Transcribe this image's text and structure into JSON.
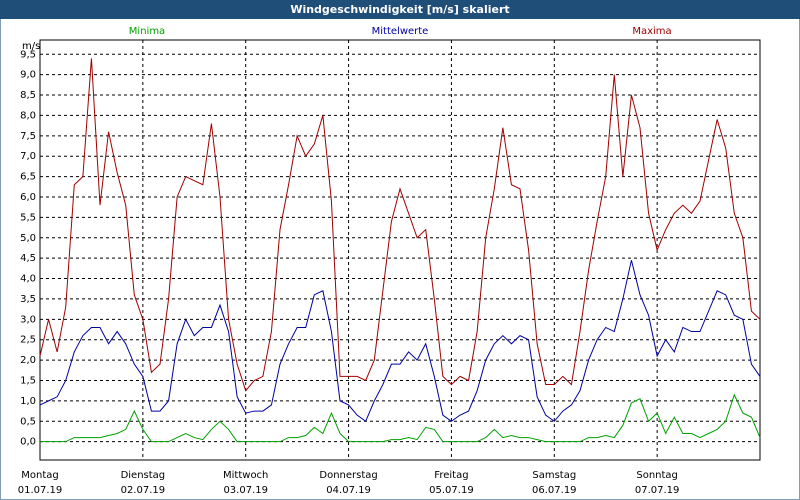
{
  "chart_data": {
    "type": "line",
    "title": "Windgeschwindigkeit [m/s] skaliert",
    "y_label": "m/s",
    "categories": [
      "Montag",
      null,
      null,
      null,
      null,
      null,
      null,
      null,
      null,
      null,
      null,
      null,
      "Dienstag",
      null,
      null,
      null,
      null,
      null,
      null,
      null,
      null,
      null,
      null,
      null,
      "Mittwoch",
      null,
      null,
      null,
      null,
      null,
      null,
      null,
      null,
      null,
      null,
      null,
      "Donnerstag",
      null,
      null,
      null,
      null,
      null,
      null,
      null,
      null,
      null,
      null,
      null,
      "Freitag",
      null,
      null,
      null,
      null,
      null,
      null,
      null,
      null,
      null,
      null,
      null,
      "Samstag",
      null,
      null,
      null,
      null,
      null,
      null,
      null,
      null,
      null,
      null,
      null,
      "Sonntag",
      null,
      null,
      null,
      null,
      null,
      null,
      null,
      null,
      null,
      null,
      null,
      null
    ],
    "dates": [
      "01.07.19",
      null,
      null,
      null,
      null,
      null,
      null,
      null,
      null,
      null,
      null,
      null,
      "02.07.19",
      null,
      null,
      null,
      null,
      null,
      null,
      null,
      null,
      null,
      null,
      null,
      "03.07.19",
      null,
      null,
      null,
      null,
      null,
      null,
      null,
      null,
      null,
      null,
      null,
      "04.07.19",
      null,
      null,
      null,
      null,
      null,
      null,
      null,
      null,
      null,
      null,
      null,
      "05.07.19",
      null,
      null,
      null,
      null,
      null,
      null,
      null,
      null,
      null,
      null,
      null,
      "06.07.19",
      null,
      null,
      null,
      null,
      null,
      null,
      null,
      null,
      null,
      null,
      null,
      "07.07.19",
      null,
      null,
      null,
      null,
      null,
      null,
      null,
      null,
      null,
      null,
      null,
      null
    ],
    "series": [
      {
        "name": "Minima",
        "color": "#00a000",
        "values": [
          0,
          0,
          0,
          0,
          0.1,
          0.1,
          0.1,
          0.1,
          0.15,
          0.2,
          0.3,
          0.75,
          0.3,
          0,
          0,
          0,
          0.1,
          0.2,
          0.1,
          0.05,
          0.3,
          0.5,
          0.3,
          0,
          0,
          0,
          0,
          0,
          0,
          0.1,
          0.1,
          0.15,
          0.35,
          0.2,
          0.7,
          0.2,
          0,
          0,
          0,
          0,
          0,
          0.05,
          0.05,
          0.1,
          0.05,
          0.35,
          0.3,
          0,
          0,
          0,
          0,
          0,
          0.1,
          0.3,
          0.1,
          0.15,
          0.1,
          0.1,
          0.05,
          0,
          0,
          0,
          0,
          0,
          0.1,
          0.1,
          0.15,
          0.1,
          0.4,
          0.95,
          1.05,
          0.5,
          0.7,
          0.2,
          0.6,
          0.2,
          0.2,
          0.1,
          0.2,
          0.3,
          0.5,
          1.15,
          0.7,
          0.6,
          0.1
        ]
      },
      {
        "name": "Mittelwerte",
        "color": "#0000a0",
        "values": [
          0.9,
          1.0,
          1.1,
          1.5,
          2.2,
          2.6,
          2.8,
          2.8,
          2.4,
          2.7,
          2.4,
          1.9,
          1.6,
          0.75,
          0.75,
          1.0,
          2.4,
          3.0,
          2.6,
          2.8,
          2.8,
          3.35,
          2.7,
          1.1,
          0.7,
          0.75,
          0.75,
          0.9,
          1.9,
          2.4,
          2.8,
          2.8,
          3.6,
          3.7,
          2.7,
          1.0,
          0.9,
          0.65,
          0.5,
          1.0,
          1.4,
          1.9,
          1.9,
          2.2,
          2.0,
          2.4,
          1.6,
          0.65,
          0.5,
          0.65,
          0.75,
          1.25,
          2.0,
          2.4,
          2.6,
          2.4,
          2.6,
          2.5,
          1.1,
          0.65,
          0.5,
          0.75,
          0.9,
          1.25,
          2.0,
          2.5,
          2.8,
          2.7,
          3.5,
          4.45,
          3.6,
          3.1,
          2.1,
          2.5,
          2.2,
          2.8,
          2.7,
          2.7,
          3.2,
          3.7,
          3.6,
          3.1,
          3.0,
          1.9,
          1.6
        ]
      },
      {
        "name": "Maxima",
        "color": "#a00000",
        "values": [
          2.1,
          3.0,
          2.2,
          3.3,
          6.3,
          6.5,
          9.4,
          5.8,
          7.6,
          6.6,
          5.8,
          3.6,
          3.0,
          1.7,
          1.9,
          3.5,
          6.0,
          6.5,
          6.4,
          6.3,
          7.8,
          6.0,
          3.0,
          1.9,
          1.25,
          1.5,
          1.6,
          2.7,
          5.2,
          6.3,
          7.5,
          7.0,
          7.3,
          8.0,
          5.9,
          1.6,
          1.6,
          1.6,
          1.5,
          2.0,
          3.7,
          5.4,
          6.2,
          5.6,
          5.0,
          5.2,
          3.5,
          1.6,
          1.4,
          1.6,
          1.5,
          2.7,
          5.0,
          6.2,
          7.7,
          6.3,
          6.2,
          4.7,
          2.4,
          1.4,
          1.4,
          1.6,
          1.4,
          2.7,
          4.2,
          5.4,
          6.5,
          9.0,
          6.5,
          8.5,
          7.7,
          5.6,
          4.7,
          5.2,
          5.6,
          5.8,
          5.6,
          5.9,
          6.9,
          7.9,
          7.2,
          5.6,
          5.0,
          3.2,
          3.0
        ]
      }
    ],
    "ylim": [
      -0.45,
      9.85
    ],
    "yticks": [
      {
        "value": 0,
        "label": "0,0"
      },
      {
        "value": 0.5,
        "label": "0,5"
      },
      {
        "value": 1,
        "label": "1,0"
      },
      {
        "value": 1.5,
        "label": "1,5"
      },
      {
        "value": 2,
        "label": "2,0"
      },
      {
        "value": 2.5,
        "label": "2,5"
      },
      {
        "value": 3,
        "label": "3,0"
      },
      {
        "value": 3.5,
        "label": "3,5"
      },
      {
        "value": 4,
        "label": "4,0"
      },
      {
        "value": 4.5,
        "label": "4,5"
      },
      {
        "value": 5,
        "label": "5,0"
      },
      {
        "value": 5.5,
        "label": "5,5"
      },
      {
        "value": 6,
        "label": "6,0"
      },
      {
        "value": 6.5,
        "label": "6,5"
      },
      {
        "value": 7,
        "label": "7,0"
      },
      {
        "value": 7.5,
        "label": "7,5"
      },
      {
        "value": 8,
        "label": "8,0"
      },
      {
        "value": 8.5,
        "label": "8,5"
      },
      {
        "value": 9,
        "label": "9,0"
      },
      {
        "value": 9.5,
        "label": "9,5"
      }
    ],
    "grid": true
  }
}
